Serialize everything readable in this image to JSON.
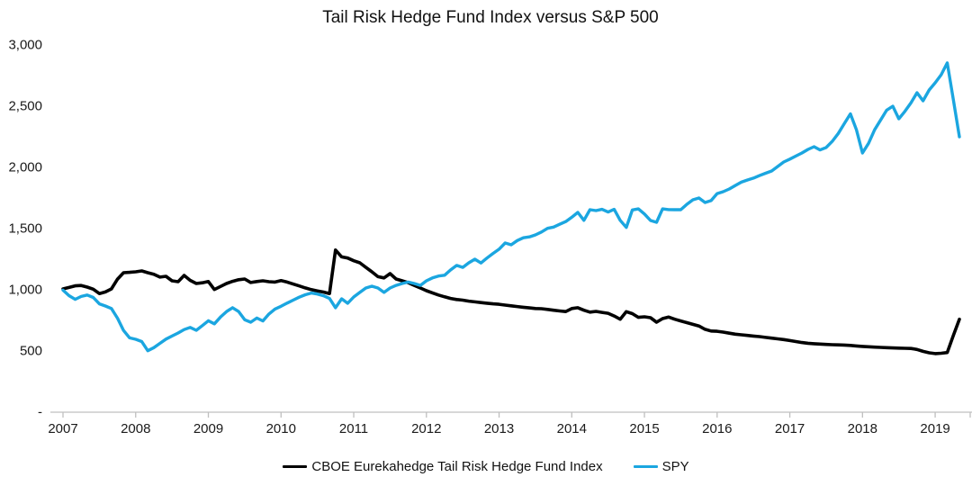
{
  "title": "Tail Risk Hedge Fund Index versus S&P 500",
  "colors": {
    "tail_risk": "#000000",
    "spy": "#1BA6E0",
    "axis_line": "#BFBFBF",
    "label_text": "#1A1A1A"
  },
  "y_axis": {
    "tick_labels": [
      "-",
      "500",
      "1,000",
      "1,500",
      "2,000",
      "2,500",
      "3,000"
    ],
    "min": 0,
    "max": 3000,
    "step": 500
  },
  "x_axis": {
    "tick_labels": [
      "2007",
      "2008",
      "2009",
      "2010",
      "2011",
      "2012",
      "2013",
      "2014",
      "2015",
      "2016",
      "2017",
      "2018",
      "2019"
    ]
  },
  "legend": {
    "items": [
      {
        "label": "CBOE Eurekahedge Tail Risk Hedge Fund Index",
        "color_key": "tail_risk"
      },
      {
        "label": "SPY",
        "color_key": "spy"
      }
    ]
  },
  "chart_data": {
    "type": "line",
    "title": "Tail Risk Hedge Fund Index versus S&P 500",
    "x_start": "2007-01",
    "x_frequency": "monthly",
    "xlabel": "",
    "ylabel": "",
    "ylim": [
      0,
      3000
    ],
    "grid": false,
    "legend_position": "bottom",
    "series": [
      {
        "name": "CBOE Eurekahedge Tail Risk Hedge Fund Index",
        "color": "#000000",
        "values": [
          1000,
          1012,
          1025,
          1028,
          1015,
          998,
          962,
          975,
          1000,
          1080,
          1132,
          1135,
          1140,
          1147,
          1132,
          1120,
          1096,
          1103,
          1066,
          1059,
          1110,
          1070,
          1044,
          1050,
          1060,
          995,
          1020,
          1044,
          1062,
          1075,
          1081,
          1052,
          1060,
          1066,
          1059,
          1056,
          1068,
          1056,
          1040,
          1024,
          1008,
          994,
          984,
          974,
          962,
          1318,
          1262,
          1252,
          1230,
          1213,
          1176,
          1140,
          1100,
          1090,
          1125,
          1081,
          1066,
          1051,
          1029,
          1007,
          985,
          968,
          950,
          935,
          922,
          913,
          908,
          900,
          894,
          888,
          883,
          878,
          874,
          868,
          862,
          856,
          850,
          845,
          840,
          838,
          832,
          826,
          820,
          815,
          840,
          846,
          826,
          810,
          816,
          808,
          801,
          779,
          752,
          814,
          798,
          768,
          772,
          765,
          728,
          757,
          770,
          752,
          738,
          724,
          710,
          697,
          670,
          656,
          654,
          647,
          638,
          630,
          625,
          620,
          615,
          610,
          604,
          598,
          592,
          586,
          578,
          570,
          562,
          556,
          552,
          549,
          546,
          544,
          543,
          541,
          538,
          534,
          530,
          527,
          524,
          522,
          520,
          518,
          516,
          515,
          513,
          505,
          490,
          478,
          471,
          474,
          480,
          620,
          752
        ]
      },
      {
        "name": "SPY",
        "color": "#1BA6E0",
        "values": [
          990,
          945,
          915,
          938,
          950,
          930,
          878,
          860,
          840,
          760,
          660,
          600,
          588,
          570,
          495,
          520,
          555,
          590,
          615,
          640,
          668,
          685,
          662,
          700,
          740,
          715,
          770,
          815,
          846,
          815,
          748,
          728,
          762,
          738,
          795,
          835,
          858,
          884,
          908,
          932,
          952,
          966,
          958,
          944,
          922,
          846,
          919,
          882,
          934,
          971,
          1007,
          1022,
          1007,
          971,
          1007,
          1029,
          1044,
          1056,
          1044,
          1029,
          1066,
          1090,
          1105,
          1112,
          1155,
          1192,
          1176,
          1213,
          1243,
          1212,
          1252,
          1290,
          1324,
          1375,
          1360,
          1395,
          1418,
          1425,
          1441,
          1465,
          1495,
          1505,
          1528,
          1550,
          1585,
          1625,
          1560,
          1647,
          1640,
          1650,
          1628,
          1650,
          1560,
          1502,
          1645,
          1654,
          1612,
          1559,
          1544,
          1654,
          1648,
          1647,
          1647,
          1691,
          1728,
          1743,
          1706,
          1721,
          1779,
          1794,
          1816,
          1845,
          1872,
          1890,
          1905,
          1926,
          1945,
          1963,
          2000,
          2037,
          2060,
          2085,
          2110,
          2140,
          2162,
          2135,
          2155,
          2205,
          2270,
          2350,
          2430,
          2300,
          2110,
          2190,
          2300,
          2380,
          2460,
          2493,
          2390,
          2450,
          2520,
          2603,
          2537,
          2625,
          2684,
          2750,
          2846,
          2545,
          2243
        ]
      }
    ]
  }
}
